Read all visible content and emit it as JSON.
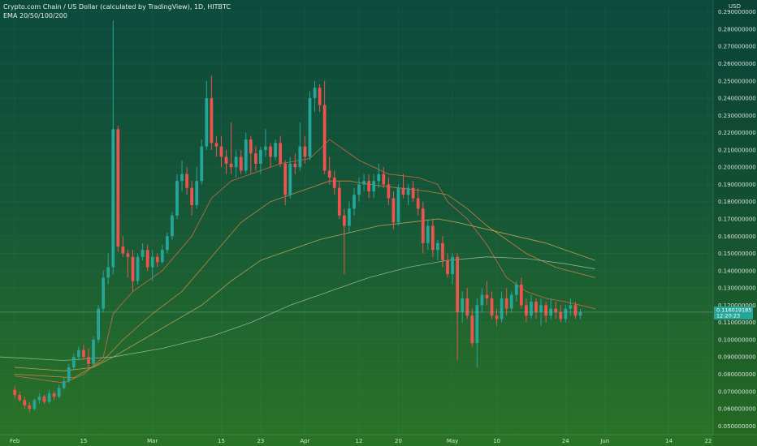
{
  "chart_data": {
    "type": "candlestick",
    "title": "Crypto.com Chain / US Dollar (calculated by TradingView), 1D, HITBTC",
    "indicator_label": "EMA 20/50/100/200",
    "currency": "USD",
    "ylim": [
      0.045,
      0.295
    ],
    "y_ticks": [
      "0.290000000",
      "0.280000000",
      "0.270000000",
      "0.260000000",
      "0.250000000",
      "0.240000000",
      "0.230000000",
      "0.220000000",
      "0.210000000",
      "0.200000000",
      "0.190000000",
      "0.180000000",
      "0.170000000",
      "0.160000000",
      "0.150000000",
      "0.140000000",
      "0.130000000",
      "0.120000000",
      "0.110000000",
      "0.100000000",
      "0.090000000",
      "0.080000000",
      "0.070000000",
      "0.060000000",
      "0.050000000"
    ],
    "x_labels": [
      {
        "label": "Feb",
        "day": 0
      },
      {
        "label": "15",
        "day": 14
      },
      {
        "label": "Mar",
        "day": 28
      },
      {
        "label": "15",
        "day": 42
      },
      {
        "label": "23",
        "day": 50
      },
      {
        "label": "Apr",
        "day": 59
      },
      {
        "label": "12",
        "day": 70
      },
      {
        "label": "20",
        "day": 78
      },
      {
        "label": "May",
        "day": 89
      },
      {
        "label": "10",
        "day": 98
      },
      {
        "label": "24",
        "day": 112
      },
      {
        "label": "Jun",
        "day": 120
      },
      {
        "label": "14",
        "day": 133
      },
      {
        "label": "22",
        "day": 141
      }
    ],
    "x_range": [
      -3,
      142
    ],
    "last_price": {
      "value": 0.116,
      "label": "0.116019185",
      "countdown": "12:20:23"
    },
    "colors": {
      "up": "#26a69a",
      "down": "#ef5350",
      "ema20": "#e06a4a",
      "ema50": "#d68a3c",
      "ema100": "#c9a65a",
      "ema200": "#9fb8a0"
    },
    "candles": [
      [
        0.071,
        0.073,
        0.066,
        0.068
      ],
      [
        0.068,
        0.07,
        0.064,
        0.065
      ],
      [
        0.065,
        0.067,
        0.06,
        0.062
      ],
      [
        0.062,
        0.064,
        0.058,
        0.06
      ],
      [
        0.06,
        0.066,
        0.059,
        0.065
      ],
      [
        0.065,
        0.069,
        0.063,
        0.067
      ],
      [
        0.067,
        0.068,
        0.063,
        0.064
      ],
      [
        0.064,
        0.071,
        0.063,
        0.069
      ],
      [
        0.069,
        0.07,
        0.065,
        0.067
      ],
      [
        0.067,
        0.074,
        0.066,
        0.072
      ],
      [
        0.072,
        0.078,
        0.071,
        0.076
      ],
      [
        0.076,
        0.086,
        0.075,
        0.084
      ],
      [
        0.084,
        0.092,
        0.083,
        0.09
      ],
      [
        0.09,
        0.096,
        0.088,
        0.094
      ],
      [
        0.094,
        0.097,
        0.088,
        0.09
      ],
      [
        0.09,
        0.095,
        0.084,
        0.086
      ],
      [
        0.086,
        0.102,
        0.085,
        0.1
      ],
      [
        0.1,
        0.12,
        0.098,
        0.118
      ],
      [
        0.118,
        0.14,
        0.116,
        0.136
      ],
      [
        0.136,
        0.15,
        0.132,
        0.142
      ],
      [
        0.142,
        0.285,
        0.138,
        0.222
      ],
      [
        0.222,
        0.224,
        0.151,
        0.154
      ],
      [
        0.154,
        0.16,
        0.148,
        0.15
      ],
      [
        0.15,
        0.152,
        0.136,
        0.148
      ],
      [
        0.148,
        0.152,
        0.128,
        0.134
      ],
      [
        0.134,
        0.15,
        0.132,
        0.148
      ],
      [
        0.148,
        0.156,
        0.146,
        0.152
      ],
      [
        0.152,
        0.155,
        0.14,
        0.142
      ],
      [
        0.142,
        0.152,
        0.134,
        0.148
      ],
      [
        0.148,
        0.15,
        0.142,
        0.145
      ],
      [
        0.145,
        0.155,
        0.144,
        0.152
      ],
      [
        0.152,
        0.162,
        0.15,
        0.16
      ],
      [
        0.16,
        0.174,
        0.158,
        0.172
      ],
      [
        0.172,
        0.196,
        0.17,
        0.192
      ],
      [
        0.192,
        0.204,
        0.186,
        0.196
      ],
      [
        0.196,
        0.2,
        0.184,
        0.188
      ],
      [
        0.188,
        0.192,
        0.172,
        0.178
      ],
      [
        0.178,
        0.2,
        0.176,
        0.192
      ],
      [
        0.192,
        0.216,
        0.19,
        0.212
      ],
      [
        0.212,
        0.25,
        0.21,
        0.24
      ],
      [
        0.24,
        0.253,
        0.21,
        0.214
      ],
      [
        0.214,
        0.218,
        0.206,
        0.212
      ],
      [
        0.212,
        0.218,
        0.2,
        0.206
      ],
      [
        0.206,
        0.21,
        0.196,
        0.202
      ],
      [
        0.202,
        0.226,
        0.196,
        0.2
      ],
      [
        0.2,
        0.21,
        0.194,
        0.206
      ],
      [
        0.206,
        0.21,
        0.196,
        0.198
      ],
      [
        0.198,
        0.22,
        0.196,
        0.216
      ],
      [
        0.216,
        0.218,
        0.196,
        0.208
      ],
      [
        0.208,
        0.212,
        0.198,
        0.202
      ],
      [
        0.202,
        0.212,
        0.196,
        0.21
      ],
      [
        0.21,
        0.222,
        0.206,
        0.212
      ],
      [
        0.212,
        0.214,
        0.2,
        0.206
      ],
      [
        0.206,
        0.216,
        0.204,
        0.214
      ],
      [
        0.214,
        0.218,
        0.2,
        0.202
      ],
      [
        0.202,
        0.204,
        0.178,
        0.184
      ],
      [
        0.184,
        0.206,
        0.182,
        0.202
      ],
      [
        0.202,
        0.208,
        0.196,
        0.2
      ],
      [
        0.2,
        0.226,
        0.198,
        0.212
      ],
      [
        0.212,
        0.218,
        0.202,
        0.206
      ],
      [
        0.206,
        0.244,
        0.204,
        0.24
      ],
      [
        0.24,
        0.25,
        0.232,
        0.246
      ],
      [
        0.246,
        0.248,
        0.232,
        0.236
      ],
      [
        0.236,
        0.25,
        0.196,
        0.198
      ],
      [
        0.198,
        0.206,
        0.19,
        0.194
      ],
      [
        0.194,
        0.198,
        0.184,
        0.188
      ],
      [
        0.188,
        0.192,
        0.17,
        0.172
      ],
      [
        0.172,
        0.176,
        0.138,
        0.166
      ],
      [
        0.166,
        0.18,
        0.162,
        0.176
      ],
      [
        0.176,
        0.188,
        0.172,
        0.184
      ],
      [
        0.184,
        0.194,
        0.18,
        0.19
      ],
      [
        0.19,
        0.196,
        0.186,
        0.192
      ],
      [
        0.192,
        0.196,
        0.182,
        0.186
      ],
      [
        0.186,
        0.196,
        0.182,
        0.192
      ],
      [
        0.192,
        0.202,
        0.188,
        0.196
      ],
      [
        0.196,
        0.2,
        0.188,
        0.19
      ],
      [
        0.19,
        0.194,
        0.178,
        0.182
      ],
      [
        0.182,
        0.186,
        0.164,
        0.168
      ],
      [
        0.168,
        0.19,
        0.166,
        0.188
      ],
      [
        0.188,
        0.196,
        0.182,
        0.184
      ],
      [
        0.184,
        0.19,
        0.178,
        0.188
      ],
      [
        0.188,
        0.192,
        0.18,
        0.182
      ],
      [
        0.182,
        0.188,
        0.172,
        0.176
      ],
      [
        0.176,
        0.18,
        0.15,
        0.156
      ],
      [
        0.156,
        0.17,
        0.152,
        0.166
      ],
      [
        0.166,
        0.17,
        0.148,
        0.152
      ],
      [
        0.152,
        0.158,
        0.146,
        0.156
      ],
      [
        0.156,
        0.16,
        0.142,
        0.146
      ],
      [
        0.146,
        0.15,
        0.136,
        0.138
      ],
      [
        0.138,
        0.15,
        0.132,
        0.148
      ],
      [
        0.148,
        0.15,
        0.088,
        0.116
      ],
      [
        0.116,
        0.128,
        0.11,
        0.124
      ],
      [
        0.124,
        0.13,
        0.112,
        0.114
      ],
      [
        0.114,
        0.118,
        0.096,
        0.098
      ],
      [
        0.098,
        0.124,
        0.084,
        0.12
      ],
      [
        0.12,
        0.13,
        0.116,
        0.126
      ],
      [
        0.126,
        0.134,
        0.12,
        0.124
      ],
      [
        0.124,
        0.128,
        0.112,
        0.114
      ],
      [
        0.114,
        0.118,
        0.108,
        0.112
      ],
      [
        0.112,
        0.128,
        0.11,
        0.124
      ],
      [
        0.124,
        0.13,
        0.114,
        0.118
      ],
      [
        0.118,
        0.128,
        0.116,
        0.126
      ],
      [
        0.126,
        0.134,
        0.122,
        0.132
      ],
      [
        0.132,
        0.136,
        0.118,
        0.12
      ],
      [
        0.12,
        0.124,
        0.11,
        0.114
      ],
      [
        0.114,
        0.126,
        0.112,
        0.122
      ],
      [
        0.122,
        0.124,
        0.112,
        0.116
      ],
      [
        0.116,
        0.124,
        0.108,
        0.12
      ],
      [
        0.12,
        0.122,
        0.11,
        0.114
      ],
      [
        0.114,
        0.124,
        0.112,
        0.118
      ],
      [
        0.118,
        0.122,
        0.112,
        0.116
      ],
      [
        0.116,
        0.12,
        0.11,
        0.112
      ],
      [
        0.112,
        0.12,
        0.11,
        0.118
      ],
      [
        0.118,
        0.124,
        0.114,
        0.12
      ],
      [
        0.12,
        0.122,
        0.112,
        0.114
      ],
      [
        0.114,
        0.118,
        0.112,
        0.116
      ]
    ],
    "ema": [
      {
        "name": "EMA 20",
        "color": "#e06a4a",
        "points": [
          [
            0,
            0.079
          ],
          [
            10,
            0.075
          ],
          [
            14,
            0.08
          ],
          [
            18,
            0.09
          ],
          [
            20,
            0.115
          ],
          [
            24,
            0.128
          ],
          [
            30,
            0.14
          ],
          [
            36,
            0.16
          ],
          [
            40,
            0.182
          ],
          [
            44,
            0.192
          ],
          [
            50,
            0.198
          ],
          [
            54,
            0.202
          ],
          [
            60,
            0.205
          ],
          [
            64,
            0.216
          ],
          [
            66,
            0.212
          ],
          [
            70,
            0.204
          ],
          [
            76,
            0.196
          ],
          [
            82,
            0.194
          ],
          [
            86,
            0.19
          ],
          [
            88,
            0.18
          ],
          [
            92,
            0.17
          ],
          [
            96,
            0.155
          ],
          [
            100,
            0.136
          ],
          [
            104,
            0.128
          ],
          [
            108,
            0.124
          ],
          [
            112,
            0.122
          ],
          [
            118,
            0.118
          ]
        ]
      },
      {
        "name": "EMA 50",
        "color": "#d68a3c",
        "points": [
          [
            0,
            0.08
          ],
          [
            12,
            0.078
          ],
          [
            18,
            0.088
          ],
          [
            22,
            0.1
          ],
          [
            28,
            0.115
          ],
          [
            34,
            0.128
          ],
          [
            40,
            0.148
          ],
          [
            46,
            0.168
          ],
          [
            52,
            0.18
          ],
          [
            58,
            0.186
          ],
          [
            64,
            0.192
          ],
          [
            68,
            0.192
          ],
          [
            72,
            0.19
          ],
          [
            78,
            0.188
          ],
          [
            84,
            0.186
          ],
          [
            88,
            0.184
          ],
          [
            92,
            0.176
          ],
          [
            96,
            0.166
          ],
          [
            100,
            0.158
          ],
          [
            104,
            0.15
          ],
          [
            110,
            0.142
          ],
          [
            118,
            0.136
          ]
        ]
      },
      {
        "name": "EMA 100",
        "color": "#c9a65a",
        "points": [
          [
            0,
            0.084
          ],
          [
            10,
            0.082
          ],
          [
            16,
            0.084
          ],
          [
            20,
            0.09
          ],
          [
            26,
            0.1
          ],
          [
            32,
            0.11
          ],
          [
            38,
            0.12
          ],
          [
            44,
            0.134
          ],
          [
            50,
            0.146
          ],
          [
            56,
            0.152
          ],
          [
            62,
            0.158
          ],
          [
            68,
            0.162
          ],
          [
            74,
            0.166
          ],
          [
            80,
            0.168
          ],
          [
            86,
            0.17
          ],
          [
            90,
            0.168
          ],
          [
            96,
            0.164
          ],
          [
            102,
            0.16
          ],
          [
            108,
            0.156
          ],
          [
            114,
            0.15
          ],
          [
            118,
            0.146
          ]
        ]
      },
      {
        "name": "EMA 200",
        "color": "#9fb8a0",
        "points": [
          [
            -3,
            0.09
          ],
          [
            10,
            0.088
          ],
          [
            20,
            0.09
          ],
          [
            30,
            0.095
          ],
          [
            40,
            0.102
          ],
          [
            48,
            0.11
          ],
          [
            56,
            0.12
          ],
          [
            64,
            0.128
          ],
          [
            72,
            0.136
          ],
          [
            80,
            0.142
          ],
          [
            88,
            0.146
          ],
          [
            96,
            0.148
          ],
          [
            104,
            0.147
          ],
          [
            112,
            0.144
          ],
          [
            118,
            0.141
          ]
        ]
      }
    ]
  }
}
